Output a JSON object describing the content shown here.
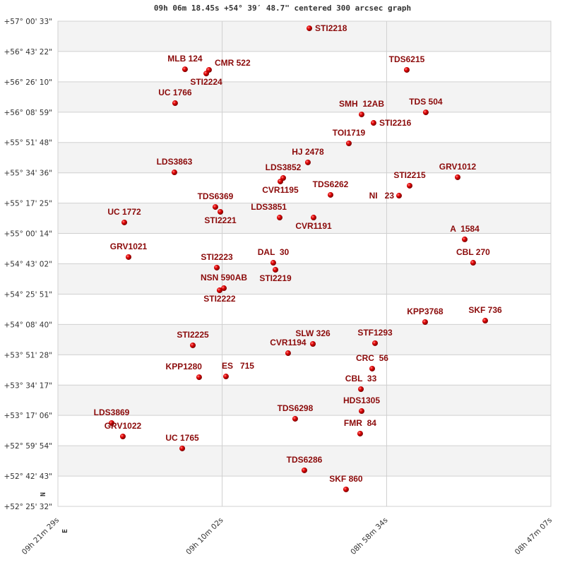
{
  "title": "09h 06m 18.45s +54° 39′ 48.7\" centered 300 arcsec graph",
  "chart_data": {
    "type": "scatter",
    "title": "09h 06m 18.45s +54° 39′ 48.7\" centered 300 arcsec graph",
    "x_unit": "RA (hours)",
    "y_unit": "Dec (degrees)",
    "xlim": [
      9.35806,
      8.78528
    ],
    "ylim": [
      52.42556,
      57.00917
    ],
    "x_reversed": true,
    "grid": true,
    "x_ticks": [
      {
        "value": 9.35806,
        "label": "09h 21m 29s"
      },
      {
        "value": 9.16722,
        "label": "09h 10m 02s"
      },
      {
        "value": 8.97611,
        "label": "08h 58m 34s"
      },
      {
        "value": 8.78528,
        "label": "08h 47m 07s"
      }
    ],
    "y_ticks": [
      {
        "value": 57.00917,
        "label": "+57° 00' 33\""
      },
      {
        "value": 56.72278,
        "label": "+56° 43' 22\""
      },
      {
        "value": 56.43611,
        "label": "+56° 26' 10\""
      },
      {
        "value": 56.14972,
        "label": "+56° 08' 59\""
      },
      {
        "value": 55.86333,
        "label": "+55° 51' 48\""
      },
      {
        "value": 55.57667,
        "label": "+55° 34' 36\""
      },
      {
        "value": 55.29028,
        "label": "+55° 17' 25\""
      },
      {
        "value": 55.00389,
        "label": "+55° 00' 14\""
      },
      {
        "value": 54.71722,
        "label": "+54° 43' 02\""
      },
      {
        "value": 54.43083,
        "label": "+54° 25' 51\""
      },
      {
        "value": 54.14444,
        "label": "+54° 08' 40\""
      },
      {
        "value": 53.85778,
        "label": "+53° 51' 28\""
      },
      {
        "value": 53.57139,
        "label": "+53° 34' 17\""
      },
      {
        "value": 53.285,
        "label": "+53° 17' 06\""
      },
      {
        "value": 52.99833,
        "label": "+52° 59' 54\""
      },
      {
        "value": 52.71194,
        "label": "+52° 42' 43\""
      },
      {
        "value": 52.42556,
        "label": "+52° 25' 32\""
      }
    ],
    "directions": {
      "north": "N",
      "east": "E"
    },
    "colors": {
      "point": "#e00000",
      "label": "#8b0a0a",
      "band": "#f3f3f3",
      "grid": "#d0d0d0"
    },
    "points": [
      {
        "name": "STI2218",
        "ra": 9.0659,
        "dec": 56.942
      },
      {
        "name": "MLB 124",
        "ra": 9.2104,
        "dec": 56.555
      },
      {
        "name": "CMR 522",
        "ra": 9.1825,
        "dec": 56.549
      },
      {
        "name": "STI2224",
        "ra": 9.1857,
        "dec": 56.515
      },
      {
        "name": "TDS6215",
        "ra": 8.9527,
        "dec": 56.549
      },
      {
        "name": "UC 1766",
        "ra": 9.2219,
        "dec": 56.235
      },
      {
        "name": "SMH  12AB",
        "ra": 9.0052,
        "dec": 56.128
      },
      {
        "name": "STI2216",
        "ra": 8.9913,
        "dec": 56.048
      },
      {
        "name": "TDS 504",
        "ra": 8.9306,
        "dec": 56.148
      },
      {
        "name": "TOI1719",
        "ra": 9.02,
        "dec": 55.855
      },
      {
        "name": "HJ 2478",
        "ra": 9.0676,
        "dec": 55.675
      },
      {
        "name": "LDS3863",
        "ra": 9.2227,
        "dec": 55.581
      },
      {
        "name": "LDS3852",
        "ra": 9.0963,
        "dec": 55.528
      },
      {
        "name": "CVR1195",
        "ra": 9.0996,
        "dec": 55.495
      },
      {
        "name": "GRV1012",
        "ra": 8.8936,
        "dec": 55.535
      },
      {
        "name": "STI2215",
        "ra": 8.9494,
        "dec": 55.455
      },
      {
        "name": "NI   23",
        "ra": 8.9617,
        "dec": 55.361
      },
      {
        "name": "TDS6262",
        "ra": 9.0413,
        "dec": 55.368
      },
      {
        "name": "TDS6369",
        "ra": 9.1751,
        "dec": 55.254
      },
      {
        "name": "STI2221",
        "ra": 9.1693,
        "dec": 55.208
      },
      {
        "name": "LDS3851",
        "ra": 9.1004,
        "dec": 55.154
      },
      {
        "name": "CVR1191",
        "ra": 9.061,
        "dec": 55.154
      },
      {
        "name": "UC 1772",
        "ra": 9.2809,
        "dec": 55.108
      },
      {
        "name": "A  1584",
        "ra": 8.8854,
        "dec": 54.948
      },
      {
        "name": "GRV1021",
        "ra": 9.276,
        "dec": 54.781
      },
      {
        "name": "CBL 270",
        "ra": 8.8756,
        "dec": 54.727
      },
      {
        "name": "DAL  30",
        "ra": 9.1078,
        "dec": 54.727
      },
      {
        "name": "STI2219",
        "ra": 9.1053,
        "dec": 54.661
      },
      {
        "name": "STI2223",
        "ra": 9.1734,
        "dec": 54.681
      },
      {
        "name": "NSN 590AB",
        "ra": 9.1652,
        "dec": 54.487
      },
      {
        "name": "STI2222",
        "ra": 9.1702,
        "dec": 54.467
      },
      {
        "name": "SKF 736",
        "ra": 8.8616,
        "dec": 54.18
      },
      {
        "name": "KPP3768",
        "ra": 8.9314,
        "dec": 54.167
      },
      {
        "name": "STF1293",
        "ra": 8.9896,
        "dec": 53.967
      },
      {
        "name": "SLW 326",
        "ra": 9.0618,
        "dec": 53.96
      },
      {
        "name": "STI2225",
        "ra": 9.2013,
        "dec": 53.947
      },
      {
        "name": "CVR1194",
        "ra": 9.0906,
        "dec": 53.873
      },
      {
        "name": "CRC  56",
        "ra": 8.9929,
        "dec": 53.727
      },
      {
        "name": "KPP1280",
        "ra": 9.194,
        "dec": 53.646
      },
      {
        "name": "ES   715",
        "ra": 9.1628,
        "dec": 53.653
      },
      {
        "name": "CBL  33",
        "ra": 9.006,
        "dec": 53.533
      },
      {
        "name": "HDS1305",
        "ra": 9.0052,
        "dec": 53.326
      },
      {
        "name": "TDS6298",
        "ra": 9.0824,
        "dec": 53.253
      },
      {
        "name": "LDS3869",
        "ra": 9.2957,
        "dec": 53.213
      },
      {
        "name": "GRV1022",
        "ra": 9.2826,
        "dec": 53.086
      },
      {
        "name": "FMR  84",
        "ra": 9.0069,
        "dec": 53.113
      },
      {
        "name": "UC 1765",
        "ra": 9.2136,
        "dec": 52.973
      },
      {
        "name": "TDS6286",
        "ra": 9.0717,
        "dec": 52.766
      },
      {
        "name": "SKF 860",
        "ra": 9.0233,
        "dec": 52.586
      }
    ]
  }
}
